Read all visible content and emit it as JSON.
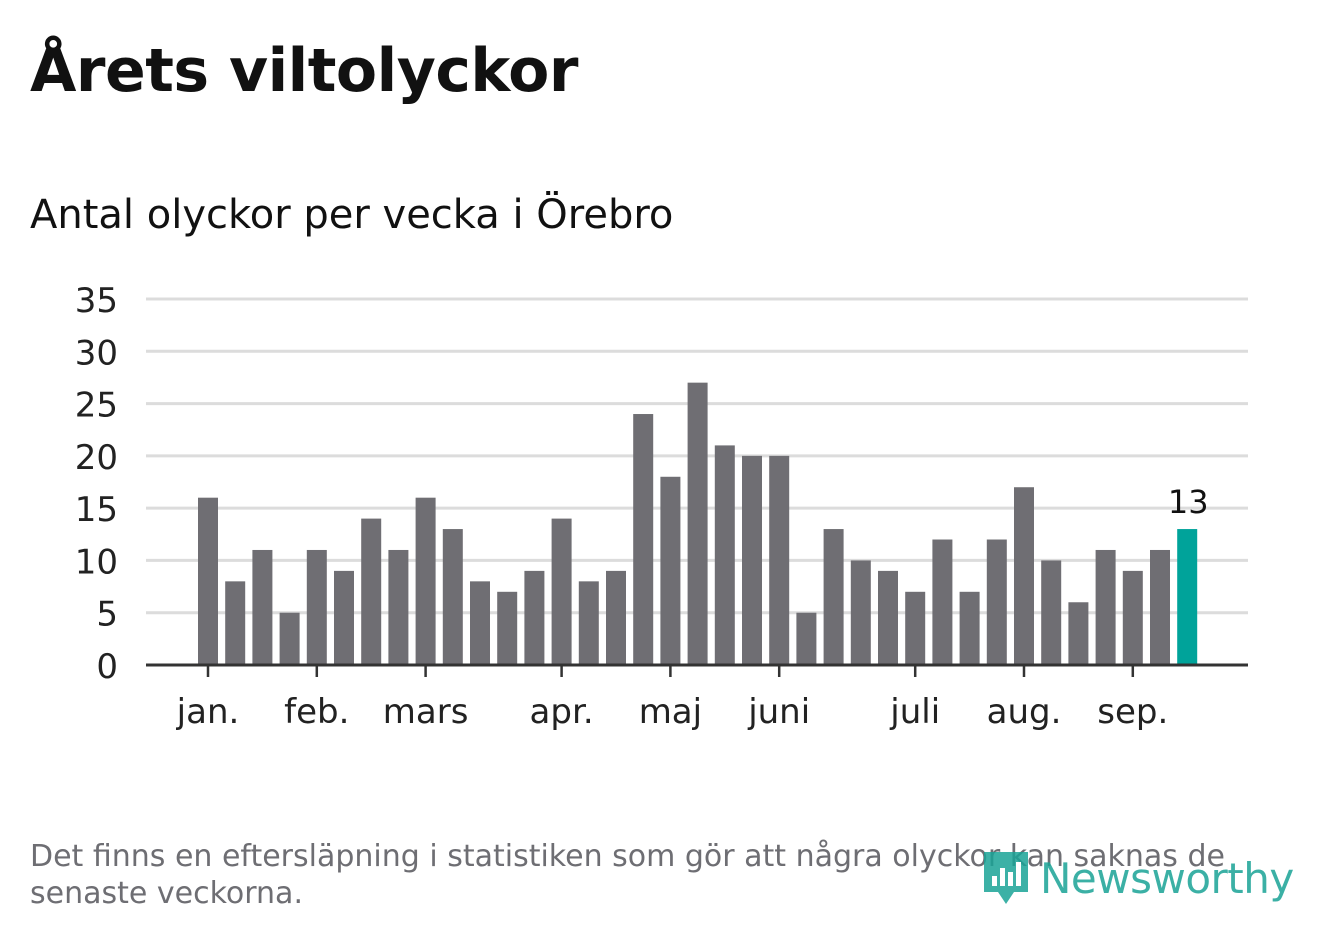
{
  "title": "Årets viltolyckor",
  "subtitle": "Antal olyckor per vecka i Örebro",
  "footnote": "Det finns en eftersläpning i statistiken som gör att några olyckor kan saknas de senaste veckorna.",
  "logo": {
    "text": "Newsworthy",
    "icon": "newsworthy-logo-icon"
  },
  "colors": {
    "bar": "#6f6e73",
    "highlight": "#00a39a",
    "grid": "#dcdcdc",
    "axis": "#333333",
    "text": "#111111",
    "muted": "#6e6e73"
  },
  "chart_data": {
    "type": "bar",
    "title": "Årets viltolyckor",
    "subtitle": "Antal olyckor per vecka i Örebro",
    "values": [
      16,
      8,
      11,
      5,
      11,
      9,
      14,
      11,
      16,
      13,
      8,
      7,
      9,
      14,
      8,
      9,
      24,
      18,
      27,
      21,
      20,
      20,
      5,
      13,
      10,
      9,
      7,
      12,
      7,
      12,
      17,
      10,
      6,
      11,
      9,
      11,
      13
    ],
    "highlight_index": 36,
    "highlight_label": "13",
    "ylim": [
      0,
      35
    ],
    "yticks": [
      "0",
      "5",
      "10",
      "15",
      "20",
      "25",
      "30",
      "35"
    ],
    "month_labels": [
      {
        "label": "jan.",
        "bar_index": 0
      },
      {
        "label": "feb.",
        "bar_index": 4
      },
      {
        "label": "mars",
        "bar_index": 8
      },
      {
        "label": "apr.",
        "bar_index": 13
      },
      {
        "label": "maj",
        "bar_index": 17
      },
      {
        "label": "juni",
        "bar_index": 21
      },
      {
        "label": "juli",
        "bar_index": 26
      },
      {
        "label": "aug.",
        "bar_index": 30
      },
      {
        "label": "sep.",
        "bar_index": 34
      }
    ],
    "xlabel": "",
    "ylabel": "",
    "grid": true
  }
}
